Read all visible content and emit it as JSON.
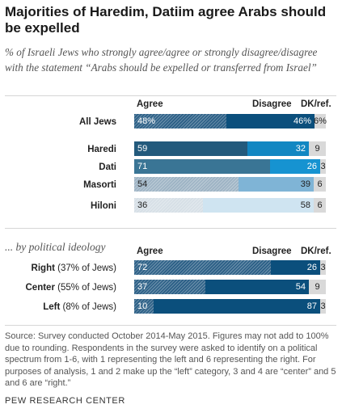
{
  "title": "Majorities of Haredim, Datiim agree Arabs should be expelled",
  "subtitle": "% of Israeli Jews who strongly agree/agree or strongly disagree/disagree with the statement “Arabs should be expelled or transferred from Israel”",
  "section_label": "... by political ideology",
  "source": "Source: Survey conducted October 2014-May 2015. Figures may not add to 100% due to rounding. Respondents in the survey were asked to identify on a political spectrum from 1-6, with 1 representing the left and 6 representing the right. For purposes of analysis, 1 and 2 make up the “left” category, 3 and 4 are “center” and 5 and 6 are “right.”",
  "logo": "PEW RESEARCH CENTER",
  "colors": {
    "agree_dark": "#2b5f86",
    "agree_stripe": "#7b99b2",
    "disagree_dark": "#0b4f7c",
    "dk": "#d9d9d9"
  },
  "chart_data": [
    {
      "type": "bar",
      "stacked": true,
      "orientation": "horizontal",
      "column_headers": [
        "Agree",
        "Disagree",
        "DK/ref."
      ],
      "series": [
        {
          "name": "Agree",
          "values": [
            48,
            59,
            71,
            54,
            36
          ]
        },
        {
          "name": "Disagree",
          "values": [
            46,
            32,
            26,
            39,
            58
          ]
        },
        {
          "name": "DK/ref.",
          "values": [
            6,
            9,
            3,
            6,
            6
          ]
        }
      ],
      "rows": [
        {
          "label": "All Jews",
          "agree": 48,
          "agree_label": "48%",
          "disagree": 46,
          "disagree_label": "46%",
          "dk": 6,
          "dk_label": "6%",
          "agree_color": "#2b5f86",
          "agree_pattern": "hatch",
          "disagree_color": "#0b4f7c",
          "disagree_text": "#ffffff"
        },
        {
          "label": "Haredi",
          "agree": 59,
          "agree_label": "59",
          "disagree": 32,
          "disagree_label": "32",
          "dk": 9,
          "dk_label": "9",
          "agree_color": "#235a7c",
          "agree_pattern": "solid",
          "disagree_color": "#1287c2",
          "disagree_text": "#ffffff"
        },
        {
          "label": "Dati",
          "agree": 71,
          "agree_label": "71",
          "disagree": 26,
          "disagree_label": "26",
          "dk": 3,
          "dk_label": "3",
          "agree_color": "#3a7595",
          "agree_pattern": "solid",
          "disagree_color": "#1693d1",
          "disagree_text": "#ffffff"
        },
        {
          "label": "Masorti",
          "agree": 54,
          "agree_label": "54",
          "disagree": 39,
          "disagree_label": "39",
          "dk": 6,
          "dk_label": "6",
          "agree_color": "#9db3c4",
          "agree_pattern": "hatch",
          "disagree_color": "#7fb4d6",
          "disagree_text": "#222222"
        },
        {
          "label": "Hiloni",
          "agree": 36,
          "agree_label": "36",
          "disagree": 58,
          "disagree_label": "58",
          "dk": 6,
          "dk_label": "6",
          "agree_color": "#d6dfe6",
          "agree_pattern": "hatch",
          "disagree_color": "#cfe4f1",
          "disagree_text": "#222222"
        }
      ]
    },
    {
      "type": "bar",
      "stacked": true,
      "orientation": "horizontal",
      "column_headers": [
        "Agree",
        "Disagree",
        "DK/ref."
      ],
      "series": [
        {
          "name": "Agree",
          "values": [
            72,
            37,
            10
          ]
        },
        {
          "name": "Disagree",
          "values": [
            26,
            54,
            87
          ]
        },
        {
          "name": "DK/ref.",
          "values": [
            3,
            9,
            3
          ]
        }
      ],
      "rows": [
        {
          "label_bold": "Right",
          "label_rest": " (37% of Jews)",
          "agree": 72,
          "agree_label": "72",
          "disagree": 26,
          "disagree_label": "26",
          "dk": 3,
          "dk_label": "3",
          "agree_color": "#2b5f86",
          "agree_pattern": "hatch",
          "disagree_color": "#0b4f7c",
          "disagree_text": "#ffffff"
        },
        {
          "label_bold": "Center",
          "label_rest": " (55% of Jews)",
          "agree": 37,
          "agree_label": "37",
          "disagree": 54,
          "disagree_label": "54",
          "dk": 9,
          "dk_label": "9",
          "agree_color": "#2b5f86",
          "agree_pattern": "hatch",
          "disagree_color": "#0b4f7c",
          "disagree_text": "#ffffff"
        },
        {
          "label_bold": "Left",
          "label_rest": " (8% of Jews)",
          "agree": 10,
          "agree_label": "10",
          "disagree": 87,
          "disagree_label": "87",
          "dk": 3,
          "dk_label": "3",
          "agree_color": "#2b5f86",
          "agree_pattern": "hatch",
          "disagree_color": "#0b4f7c",
          "disagree_text": "#ffffff"
        }
      ]
    }
  ]
}
